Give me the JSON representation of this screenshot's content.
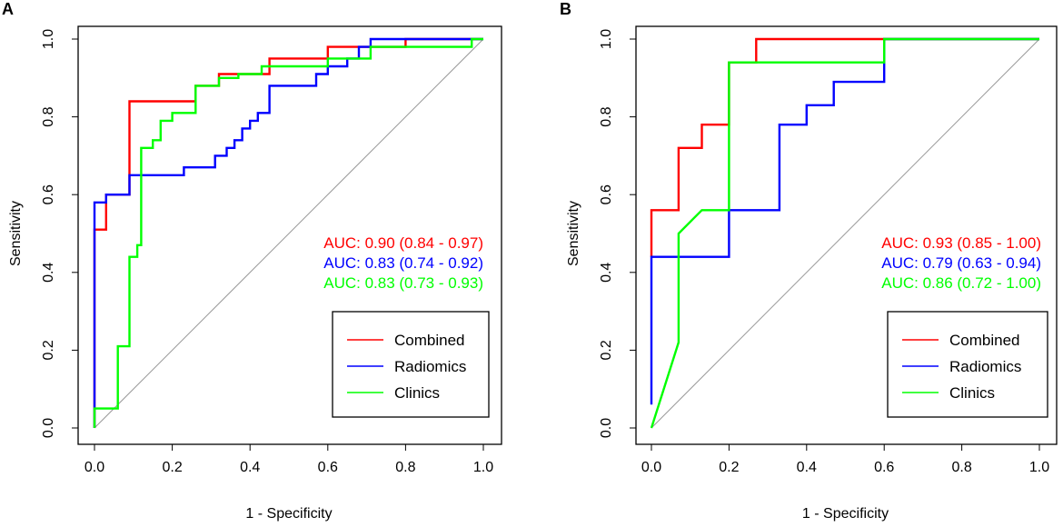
{
  "chart_data": [
    {
      "type": "line",
      "panel_label": "A",
      "xlabel": "1 - Specificity",
      "ylabel": "Sensitivity",
      "xlim": [
        0,
        1
      ],
      "ylim": [
        0,
        1
      ],
      "xticks": [
        "0.0",
        "0.2",
        "0.4",
        "0.6",
        "0.8",
        "1.0"
      ],
      "yticks": [
        "0.0",
        "0.2",
        "0.4",
        "0.6",
        "0.8",
        "1.0"
      ],
      "diagonal": true,
      "auc_labels": [
        {
          "text": "AUC: 0.90 (0.84 - 0.97)",
          "color": "#ff0000"
        },
        {
          "text": "AUC: 0.83 (0.74 - 0.92)",
          "color": "#0000ff"
        },
        {
          "text": "AUC: 0.83 (0.73 - 0.93)",
          "color": "#00ff00"
        }
      ],
      "legend": {
        "position": "bottom-right",
        "entries": [
          "Combined",
          "Radiomics",
          "Clinics"
        ]
      },
      "series": [
        {
          "name": "Combined",
          "color": "#ff0000",
          "x": [
            0,
            0,
            0.03,
            0.03,
            0.09,
            0.09,
            0.26,
            0.26,
            0.32,
            0.32,
            0.45,
            0.45,
            0.6,
            0.6,
            0.8,
            0.8,
            1
          ],
          "y": [
            0,
            0.51,
            0.51,
            0.6,
            0.6,
            0.84,
            0.84,
            0.88,
            0.88,
            0.91,
            0.91,
            0.95,
            0.95,
            0.98,
            0.98,
            1,
            1
          ]
        },
        {
          "name": "Radiomics",
          "color": "#0000ff",
          "x": [
            0,
            0,
            0.03,
            0.03,
            0.09,
            0.09,
            0.23,
            0.23,
            0.31,
            0.31,
            0.34,
            0.34,
            0.36,
            0.36,
            0.38,
            0.38,
            0.4,
            0.4,
            0.42,
            0.42,
            0.45,
            0.45,
            0.57,
            0.57,
            0.6,
            0.6,
            0.65,
            0.65,
            0.68,
            0.68,
            0.71,
            0.71,
            1
          ],
          "y": [
            0,
            0.58,
            0.58,
            0.6,
            0.6,
            0.65,
            0.65,
            0.67,
            0.67,
            0.7,
            0.7,
            0.72,
            0.72,
            0.74,
            0.74,
            0.77,
            0.77,
            0.79,
            0.79,
            0.81,
            0.81,
            0.88,
            0.88,
            0.91,
            0.91,
            0.93,
            0.93,
            0.95,
            0.95,
            0.98,
            0.98,
            1,
            1
          ]
        },
        {
          "name": "Clinics",
          "color": "#00ff00",
          "x": [
            0,
            0,
            0.06,
            0.06,
            0.09,
            0.09,
            0.11,
            0.11,
            0.12,
            0.12,
            0.15,
            0.15,
            0.17,
            0.17,
            0.2,
            0.2,
            0.26,
            0.26,
            0.32,
            0.32,
            0.37,
            0.37,
            0.43,
            0.43,
            0.6,
            0.6,
            0.71,
            0.71,
            0.97,
            0.97,
            1
          ],
          "y": [
            0,
            0.05,
            0.05,
            0.21,
            0.21,
            0.44,
            0.44,
            0.47,
            0.47,
            0.72,
            0.72,
            0.74,
            0.74,
            0.79,
            0.79,
            0.81,
            0.81,
            0.88,
            0.88,
            0.9,
            0.9,
            0.91,
            0.91,
            0.93,
            0.93,
            0.95,
            0.95,
            0.98,
            0.98,
            1,
            1
          ]
        }
      ]
    },
    {
      "type": "line",
      "panel_label": "B",
      "xlabel": "1 - Specificity",
      "ylabel": "Sensitivity",
      "xlim": [
        0,
        1
      ],
      "ylim": [
        0,
        1
      ],
      "xticks": [
        "0.0",
        "0.2",
        "0.4",
        "0.6",
        "0.8",
        "1.0"
      ],
      "yticks": [
        "0.0",
        "0.2",
        "0.4",
        "0.6",
        "0.8",
        "1.0"
      ],
      "diagonal": true,
      "auc_labels": [
        {
          "text": "AUC: 0.93 (0.85 - 1.00)",
          "color": "#ff0000"
        },
        {
          "text": "AUC: 0.79 (0.63 - 0.94)",
          "color": "#0000ff"
        },
        {
          "text": "AUC: 0.86 (0.72 - 1.00)",
          "color": "#00ff00"
        }
      ],
      "legend": {
        "position": "bottom-right",
        "entries": [
          "Combined",
          "Radiomics",
          "Clinics"
        ]
      },
      "series": [
        {
          "name": "Combined",
          "color": "#ff0000",
          "x": [
            0,
            0,
            0.07,
            0.07,
            0.13,
            0.13,
            0.2,
            0.2,
            0.27,
            0.27,
            1
          ],
          "y": [
            0.44,
            0.56,
            0.56,
            0.72,
            0.72,
            0.78,
            0.78,
            0.94,
            0.94,
            1,
            1
          ]
        },
        {
          "name": "Radiomics",
          "color": "#0000ff",
          "x": [
            0,
            0,
            0.2,
            0.2,
            0.33,
            0.33,
            0.4,
            0.4,
            0.47,
            0.47,
            0.6,
            0.6,
            1
          ],
          "y": [
            0.06,
            0.44,
            0.44,
            0.56,
            0.56,
            0.78,
            0.78,
            0.83,
            0.83,
            0.89,
            0.89,
            1,
            1
          ]
        },
        {
          "name": "Clinics",
          "color": "#00ff00",
          "x": [
            0,
            0.07,
            0.07,
            0.13,
            0.2,
            0.2,
            0.6,
            0.6,
            1
          ],
          "y": [
            0,
            0.22,
            0.5,
            0.56,
            0.56,
            0.94,
            0.94,
            1,
            1
          ]
        }
      ]
    }
  ]
}
